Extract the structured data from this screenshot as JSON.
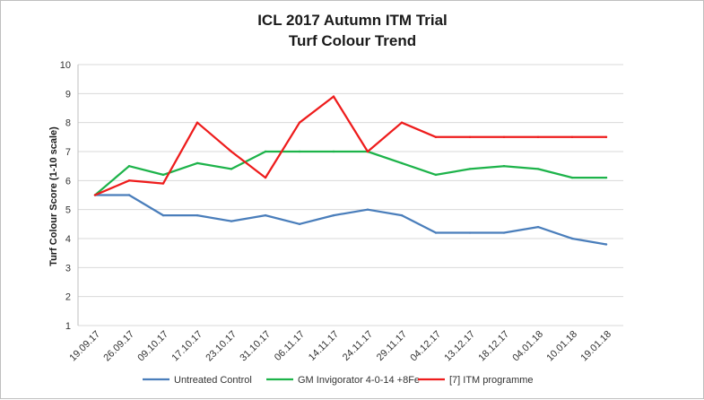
{
  "chart_data": {
    "type": "line",
    "title": "ICL 2017 Autumn ITM Trial",
    "subtitle": "Turf Colour Trend",
    "xlabel": "",
    "ylabel": "Turf Colour Score (1-10 scale)",
    "ylim": [
      1,
      10
    ],
    "yticks": [
      1,
      2,
      3,
      4,
      5,
      6,
      7,
      8,
      9,
      10
    ],
    "grid": true,
    "legend_position": "bottom",
    "categories": [
      "19.09.17",
      "26.09.17",
      "09.10.17",
      "17.10.17",
      "23.10.17",
      "31.10.17",
      "06.11.17",
      "14.11.17",
      "24.11.17",
      "29.11.17",
      "04.12.17",
      "13.12.17",
      "18.12.17",
      "04.01.18",
      "10.01.18",
      "19.01.18"
    ],
    "series": [
      {
        "name": "Untreated Control",
        "color": "#4a7ebb",
        "values": [
          5.5,
          5.5,
          4.8,
          4.8,
          4.6,
          4.8,
          4.5,
          4.8,
          5.0,
          4.8,
          4.2,
          4.2,
          4.2,
          4.4,
          4.0,
          3.8
        ]
      },
      {
        "name": "GM Invigorator 4-0-14 +8Fe",
        "color": "#1db34a",
        "values": [
          5.5,
          6.5,
          6.2,
          6.6,
          6.4,
          7.0,
          7.0,
          7.0,
          7.0,
          6.6,
          6.2,
          6.4,
          6.5,
          6.4,
          6.1,
          6.1
        ]
      },
      {
        "name": "[7] ITM programme",
        "color": "#ee1c1c",
        "values": [
          5.5,
          6.0,
          5.9,
          8.0,
          7.0,
          6.1,
          8.0,
          8.9,
          7.0,
          8.0,
          7.5,
          7.5,
          7.5,
          7.5,
          7.5,
          7.5
        ]
      }
    ]
  }
}
